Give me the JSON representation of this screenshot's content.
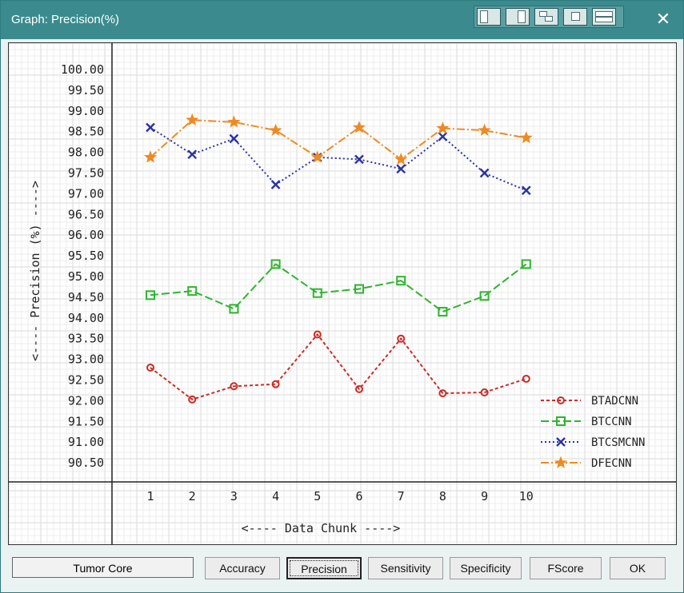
{
  "window": {
    "title": "Graph: Precision(%)",
    "close_glyph": "✕"
  },
  "footer": {
    "core_label": "Tumor Core",
    "buttons": [
      "Accuracy",
      "Precision",
      "Sensitivity",
      "Specificity",
      "FScore",
      "OK"
    ],
    "selected": "Precision"
  },
  "chart_data": {
    "type": "line",
    "ylabel": "<---- Precision (%) ---->",
    "xlabel": "<---- Data Chunk ---->",
    "x": [
      1,
      2,
      3,
      4,
      5,
      6,
      7,
      8,
      9,
      10
    ],
    "y_ticks": [
      "90.50",
      "91.00",
      "91.50",
      "92.00",
      "92.50",
      "93.00",
      "93.50",
      "94.00",
      "94.50",
      "95.00",
      "95.50",
      "96.00",
      "96.50",
      "97.00",
      "97.50",
      "98.00",
      "98.50",
      "99.00",
      "99.50",
      "100.00"
    ],
    "ylim": [
      90.0,
      100.5
    ],
    "grid": true,
    "legend_position": "bottom-right",
    "series": [
      {
        "name": "BTADCNN",
        "color": "#cc2b25",
        "marker": "circle",
        "dash": "4,3",
        "values": [
          92.8,
          92.03,
          92.35,
          92.4,
          93.6,
          92.28,
          93.5,
          92.18,
          92.2,
          92.53
        ]
      },
      {
        "name": "BTCCNN",
        "color": "#2fb52f",
        "marker": "square",
        "dash": "10,4",
        "values": [
          94.55,
          94.65,
          94.22,
          95.3,
          94.6,
          94.7,
          94.9,
          94.15,
          94.53,
          95.3
        ]
      },
      {
        "name": "BTCSMCNN",
        "color": "#2b33a5",
        "marker": "x",
        "dash": "2,3",
        "values": [
          98.6,
          97.95,
          98.33,
          97.22,
          97.88,
          97.83,
          97.6,
          98.38,
          97.5,
          97.08
        ]
      },
      {
        "name": "DFECNN",
        "color": "#ef8a22",
        "marker": "star",
        "dash": "10,3,2,3",
        "values": [
          97.88,
          98.78,
          98.73,
          98.53,
          97.88,
          98.6,
          97.83,
          98.58,
          98.53,
          98.35
        ]
      }
    ]
  }
}
